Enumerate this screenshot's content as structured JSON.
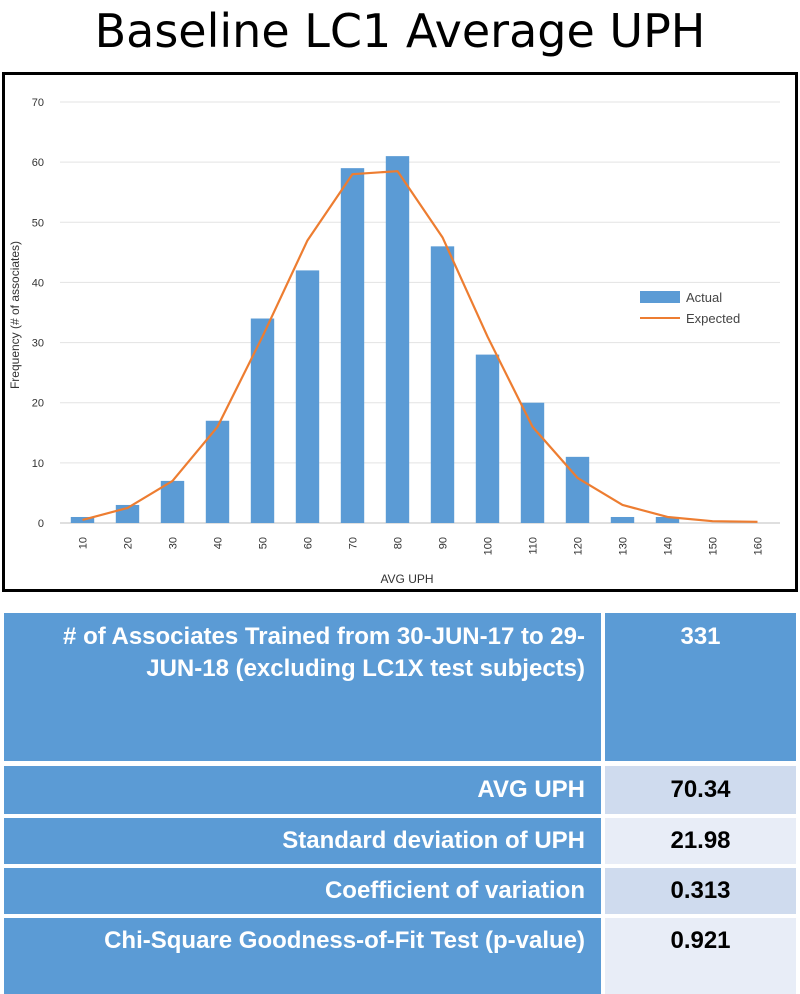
{
  "title": "Baseline LC1 Average UPH",
  "chart_data": {
    "type": "bar",
    "categories": [
      "10",
      "20",
      "30",
      "40",
      "50",
      "60",
      "70",
      "80",
      "90",
      "100",
      "110",
      "120",
      "130",
      "140",
      "150",
      "160"
    ],
    "series": [
      {
        "name": "Actual",
        "type": "bar",
        "color": "#5b9bd5",
        "values": [
          1,
          3,
          7,
          17,
          34,
          42,
          59,
          61,
          46,
          28,
          20,
          11,
          1,
          1,
          0,
          0
        ]
      },
      {
        "name": "Expected",
        "type": "line",
        "color": "#ed7d31",
        "values": [
          0.5,
          2.5,
          7,
          16,
          31,
          47,
          58,
          58.5,
          47.5,
          31,
          16,
          7.5,
          3,
          1,
          0.3,
          0.2
        ]
      }
    ],
    "xlabel": "AVG UPH",
    "ylabel": "Frequency (# of associates)",
    "ylim": [
      0,
      70
    ],
    "yticks": [
      0,
      10,
      20,
      30,
      40,
      50,
      60,
      70
    ],
    "grid": true,
    "legend": "right"
  },
  "stats": {
    "associates_label": "# of Associates Trained from 30-JUN-17 to 29-JUN-18 (excluding LC1X test subjects)",
    "associates_value": "331",
    "rows": [
      {
        "label": "AVG UPH",
        "value": "70.34"
      },
      {
        "label": "Standard deviation of UPH",
        "value": "21.98"
      },
      {
        "label": "Coefficient of variation",
        "value": "0.313"
      },
      {
        "label": "Chi-Square Goodness-of-Fit Test (p-value)",
        "value": "0.921"
      }
    ]
  },
  "colors": {
    "label_bg": "#5b9bd5",
    "value_bg_a": "#cfdbee",
    "value_bg_b": "#e8edf7"
  }
}
